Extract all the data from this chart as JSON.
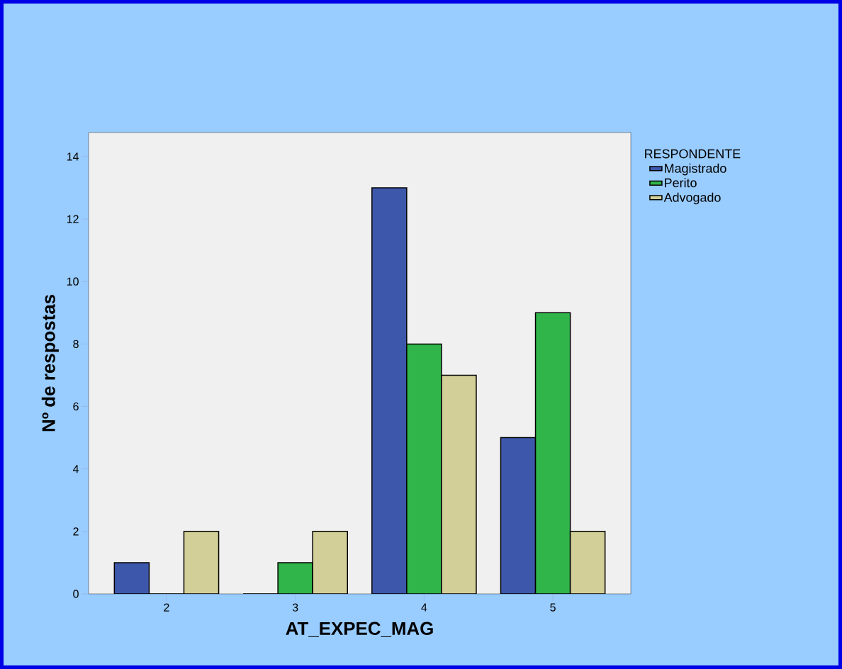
{
  "chart_data": {
    "type": "bar",
    "xlabel": "AT_EXPEC_MAG",
    "ylabel": "Nº de respostas",
    "legend_title": "RESPONDENTE",
    "categories": [
      "2",
      "3",
      "4",
      "5"
    ],
    "series": [
      {
        "name": "Magistrado",
        "color": "#3d58ab",
        "values": [
          1,
          0,
          13,
          5
        ]
      },
      {
        "name": "Perito",
        "color": "#30b54a",
        "values": [
          0,
          1,
          8,
          9
        ]
      },
      {
        "name": "Advogado",
        "color": "#d3cf98",
        "values": [
          2,
          2,
          7,
          2
        ]
      }
    ],
    "ylim": [
      0,
      14.77
    ],
    "yticks": [
      0,
      2,
      4,
      6,
      8,
      10,
      12,
      14
    ],
    "grid": false,
    "legend": "top right"
  }
}
